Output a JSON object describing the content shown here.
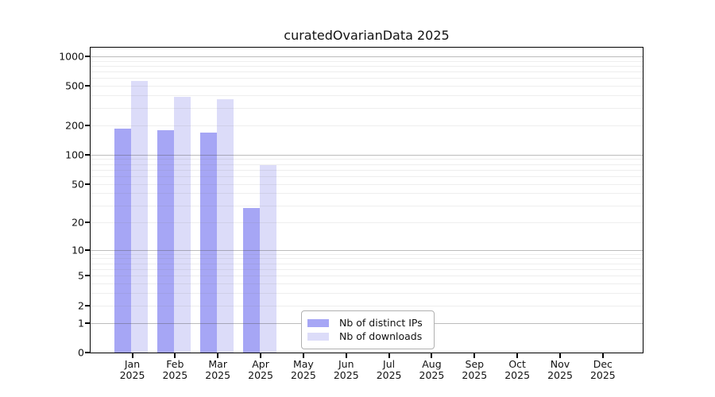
{
  "chart_data": {
    "type": "bar",
    "title": "curatedOvarianData 2025",
    "year_label": "2025",
    "categories": [
      "Jan",
      "Feb",
      "Mar",
      "Apr",
      "May",
      "Jun",
      "Jul",
      "Aug",
      "Sep",
      "Oct",
      "Nov",
      "Dec"
    ],
    "series": [
      {
        "name": "Nb of distinct IPs",
        "color": "#a6a6f5",
        "values": [
          185,
          178,
          167,
          28,
          0,
          0,
          0,
          0,
          0,
          0,
          0,
          0
        ]
      },
      {
        "name": "Nb of downloads",
        "color": "#dcdcf9",
        "values": [
          560,
          390,
          368,
          78,
          0,
          0,
          0,
          0,
          0,
          0,
          0,
          0
        ]
      }
    ],
    "y_axis": {
      "scale": "log1p",
      "tick_values": [
        0,
        1,
        2,
        5,
        10,
        20,
        50,
        100,
        200,
        500,
        1000
      ],
      "major_gridlines": [
        1,
        10,
        100,
        1000
      ],
      "minor_gridlines": [
        2,
        3,
        4,
        5,
        6,
        7,
        8,
        9,
        20,
        30,
        40,
        50,
        60,
        70,
        80,
        90,
        200,
        300,
        400,
        500,
        600,
        700,
        800,
        900
      ],
      "top_value": 1224,
      "bottom_value": 0
    },
    "legend": {
      "position": "bottom-center",
      "border_color": "#b0b0b0",
      "background": "#ffffff"
    },
    "grid": true,
    "plot_border_color": "#000000",
    "background_color": "#ffffff"
  }
}
